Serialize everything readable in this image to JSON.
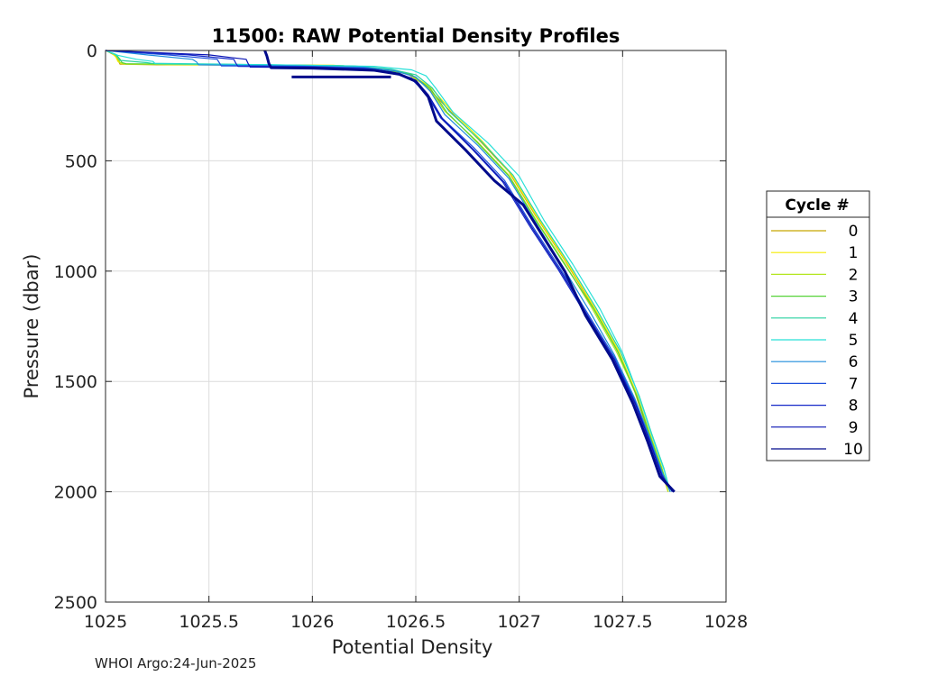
{
  "chart_data": {
    "type": "line",
    "title": "11500: RAW Potential Density Profiles",
    "xlabel": "Potential Density",
    "ylabel": "Pressure (dbar)",
    "xlim": [
      1025,
      1028
    ],
    "ylim": [
      0,
      2500
    ],
    "y_reversed": true,
    "grid": true,
    "xticks": [
      "1025",
      "1025.5",
      "1026",
      "1026.5",
      "1027",
      "1027.5",
      "1028"
    ],
    "yticks": [
      "0",
      "500",
      "1000",
      "1500",
      "2000",
      "2500"
    ],
    "legend": {
      "title": "Cycle #",
      "placement": "outside-right"
    },
    "series": [
      {
        "name": "0",
        "color": "#c8a800",
        "points": [
          [
            1025.0,
            0
          ],
          [
            1025.02,
            10
          ],
          [
            1025.05,
            25
          ],
          [
            1025.06,
            45
          ],
          [
            1025.07,
            62
          ],
          [
            1025.25,
            65
          ],
          [
            1026.1,
            68
          ],
          [
            1026.3,
            80
          ],
          [
            1026.45,
            100
          ],
          [
            1026.55,
            160
          ],
          [
            1026.65,
            260
          ],
          [
            1026.8,
            400
          ],
          [
            1026.95,
            550
          ],
          [
            1027.08,
            750
          ],
          [
            1027.22,
            950
          ],
          [
            1027.35,
            1150
          ],
          [
            1027.47,
            1350
          ],
          [
            1027.56,
            1550
          ],
          [
            1027.62,
            1720
          ],
          [
            1027.68,
            1880
          ],
          [
            1027.72,
            2000
          ]
        ]
      },
      {
        "name": "1",
        "color": "#f5ec00",
        "points": [
          [
            1025.0,
            0
          ],
          [
            1025.03,
            12
          ],
          [
            1025.05,
            30
          ],
          [
            1025.06,
            50
          ],
          [
            1025.08,
            60
          ],
          [
            1025.3,
            64
          ],
          [
            1026.1,
            67
          ],
          [
            1026.32,
            82
          ],
          [
            1026.47,
            105
          ],
          [
            1026.57,
            165
          ],
          [
            1026.67,
            270
          ],
          [
            1026.82,
            410
          ],
          [
            1026.96,
            560
          ],
          [
            1027.09,
            760
          ],
          [
            1027.23,
            960
          ],
          [
            1027.36,
            1160
          ],
          [
            1027.48,
            1360
          ],
          [
            1027.57,
            1560
          ],
          [
            1027.63,
            1730
          ],
          [
            1027.69,
            1890
          ],
          [
            1027.72,
            2000
          ]
        ]
      },
      {
        "name": "2",
        "color": "#b4e620",
        "points": [
          [
            1025.0,
            0
          ],
          [
            1025.04,
            15
          ],
          [
            1025.06,
            35
          ],
          [
            1025.07,
            55
          ],
          [
            1025.1,
            62
          ],
          [
            1025.4,
            64
          ],
          [
            1026.12,
            68
          ],
          [
            1026.33,
            83
          ],
          [
            1026.47,
            108
          ],
          [
            1026.56,
            170
          ],
          [
            1026.64,
            275
          ],
          [
            1026.8,
            415
          ],
          [
            1026.95,
            565
          ],
          [
            1027.08,
            765
          ],
          [
            1027.22,
            965
          ],
          [
            1027.35,
            1165
          ],
          [
            1027.47,
            1365
          ],
          [
            1027.57,
            1565
          ],
          [
            1027.63,
            1735
          ],
          [
            1027.69,
            1895
          ],
          [
            1027.72,
            2000
          ]
        ]
      },
      {
        "name": "3",
        "color": "#55d238",
        "points": [
          [
            1025.0,
            0
          ],
          [
            1025.05,
            18
          ],
          [
            1025.07,
            40
          ],
          [
            1025.08,
            55
          ],
          [
            1025.1,
            60
          ],
          [
            1025.5,
            63
          ],
          [
            1026.15,
            69
          ],
          [
            1026.34,
            84
          ],
          [
            1026.48,
            110
          ],
          [
            1026.57,
            172
          ],
          [
            1026.65,
            280
          ],
          [
            1026.8,
            420
          ],
          [
            1026.95,
            570
          ],
          [
            1027.08,
            770
          ],
          [
            1027.22,
            970
          ],
          [
            1027.36,
            1170
          ],
          [
            1027.48,
            1370
          ],
          [
            1027.57,
            1570
          ],
          [
            1027.63,
            1740
          ],
          [
            1027.69,
            1900
          ],
          [
            1027.73,
            2000
          ]
        ]
      },
      {
        "name": "4",
        "color": "#28d2a0",
        "points": [
          [
            1025.0,
            0
          ],
          [
            1025.05,
            20
          ],
          [
            1025.07,
            45
          ],
          [
            1025.2,
            55
          ],
          [
            1025.22,
            58
          ],
          [
            1025.6,
            62
          ],
          [
            1026.2,
            70
          ],
          [
            1026.38,
            85
          ],
          [
            1026.5,
            110
          ],
          [
            1026.58,
            170
          ],
          [
            1026.66,
            275
          ],
          [
            1026.82,
            415
          ],
          [
            1026.97,
            565
          ],
          [
            1027.1,
            765
          ],
          [
            1027.24,
            965
          ],
          [
            1027.37,
            1165
          ],
          [
            1027.49,
            1365
          ],
          [
            1027.58,
            1565
          ],
          [
            1027.64,
            1735
          ],
          [
            1027.7,
            1895
          ],
          [
            1027.73,
            2000
          ]
        ]
      },
      {
        "name": "5",
        "color": "#28e0d8",
        "points": [
          [
            1025.0,
            0
          ],
          [
            1025.06,
            22
          ],
          [
            1025.15,
            40
          ],
          [
            1025.23,
            50
          ],
          [
            1025.24,
            60
          ],
          [
            1025.8,
            65
          ],
          [
            1026.3,
            72
          ],
          [
            1026.48,
            88
          ],
          [
            1026.55,
            115
          ],
          [
            1026.6,
            175
          ],
          [
            1026.68,
            280
          ],
          [
            1026.85,
            420
          ],
          [
            1027.0,
            570
          ],
          [
            1027.12,
            770
          ],
          [
            1027.26,
            970
          ],
          [
            1027.39,
            1170
          ],
          [
            1027.5,
            1370
          ],
          [
            1027.58,
            1570
          ],
          [
            1027.64,
            1740
          ],
          [
            1027.7,
            1900
          ],
          [
            1027.73,
            2000
          ]
        ]
      },
      {
        "name": "6",
        "color": "#1e8cdc",
        "points": [
          [
            1025.0,
            0
          ],
          [
            1025.2,
            20
          ],
          [
            1025.42,
            40
          ],
          [
            1025.44,
            52
          ],
          [
            1025.45,
            65
          ],
          [
            1025.9,
            70
          ],
          [
            1026.25,
            76
          ],
          [
            1026.4,
            92
          ],
          [
            1026.5,
            120
          ],
          [
            1026.57,
            185
          ],
          [
            1026.64,
            290
          ],
          [
            1026.8,
            430
          ],
          [
            1026.95,
            580
          ],
          [
            1027.08,
            780
          ],
          [
            1027.21,
            980
          ],
          [
            1027.34,
            1180
          ],
          [
            1027.46,
            1380
          ],
          [
            1027.56,
            1580
          ],
          [
            1027.63,
            1750
          ],
          [
            1027.69,
            1910
          ],
          [
            1027.73,
            2000
          ]
        ]
      },
      {
        "name": "7",
        "color": "#1e50dc",
        "points": [
          [
            1025.0,
            0
          ],
          [
            1025.3,
            20
          ],
          [
            1025.54,
            40
          ],
          [
            1025.55,
            55
          ],
          [
            1025.56,
            70
          ],
          [
            1025.95,
            72
          ],
          [
            1026.25,
            80
          ],
          [
            1026.38,
            96
          ],
          [
            1026.48,
            125
          ],
          [
            1026.55,
            190
          ],
          [
            1026.62,
            300
          ],
          [
            1026.78,
            440
          ],
          [
            1026.93,
            590
          ],
          [
            1027.06,
            790
          ],
          [
            1027.2,
            990
          ],
          [
            1027.33,
            1190
          ],
          [
            1027.46,
            1390
          ],
          [
            1027.56,
            1590
          ],
          [
            1027.63,
            1760
          ],
          [
            1027.69,
            1920
          ],
          [
            1027.74,
            2000
          ]
        ]
      },
      {
        "name": "8",
        "color": "#1428c8",
        "points": [
          [
            1025.0,
            0
          ],
          [
            1025.4,
            20
          ],
          [
            1025.62,
            40
          ],
          [
            1025.63,
            58
          ],
          [
            1025.64,
            72
          ],
          [
            1026.0,
            75
          ],
          [
            1026.28,
            84
          ],
          [
            1026.4,
            100
          ],
          [
            1026.48,
            130
          ],
          [
            1026.55,
            195
          ],
          [
            1026.62,
            305
          ],
          [
            1026.77,
            445
          ],
          [
            1026.92,
            595
          ],
          [
            1027.05,
            795
          ],
          [
            1027.19,
            995
          ],
          [
            1027.32,
            1195
          ],
          [
            1027.45,
            1395
          ],
          [
            1027.56,
            1595
          ],
          [
            1027.63,
            1765
          ],
          [
            1027.69,
            1925
          ],
          [
            1027.74,
            2000
          ]
        ]
      },
      {
        "name": "9",
        "color": "#0a14b4",
        "points": [
          [
            1025.0,
            0
          ],
          [
            1025.5,
            20
          ],
          [
            1025.68,
            40
          ],
          [
            1025.69,
            60
          ],
          [
            1025.7,
            75
          ],
          [
            1026.05,
            78
          ],
          [
            1026.3,
            88
          ],
          [
            1026.42,
            104
          ],
          [
            1026.5,
            135
          ],
          [
            1026.56,
            200
          ],
          [
            1026.63,
            310
          ],
          [
            1026.78,
            450
          ],
          [
            1026.93,
            600
          ],
          [
            1027.06,
            800
          ],
          [
            1027.2,
            1000
          ],
          [
            1027.33,
            1200
          ],
          [
            1027.46,
            1400
          ],
          [
            1027.56,
            1600
          ],
          [
            1027.63,
            1770
          ],
          [
            1027.69,
            1930
          ],
          [
            1027.75,
            2000
          ]
        ]
      },
      {
        "name": "10",
        "color": "#000a8c",
        "points": [
          [
            1025.77,
            0
          ],
          [
            1025.78,
            25
          ],
          [
            1025.79,
            60
          ],
          [
            1025.8,
            78
          ],
          [
            1026.0,
            80
          ],
          [
            1026.3,
            90
          ],
          [
            1026.42,
            108
          ],
          [
            1026.5,
            140
          ],
          [
            1026.56,
            210
          ],
          [
            1026.6,
            320
          ],
          [
            1026.74,
            450
          ],
          [
            1026.88,
            590
          ],
          [
            1027.02,
            700
          ],
          [
            1027.12,
            850
          ],
          [
            1027.22,
            1000
          ],
          [
            1027.32,
            1200
          ],
          [
            1027.45,
            1400
          ],
          [
            1027.55,
            1600
          ],
          [
            1027.62,
            1770
          ],
          [
            1027.68,
            1930
          ],
          [
            1027.75,
            2000
          ]
        ]
      },
      {
        "name": "",
        "color": "#000a8c",
        "points": [
          [
            1025.9,
            120
          ],
          [
            1026.38,
            120
          ]
        ]
      }
    ]
  },
  "footer": "WHOI Argo:24-Jun-2025"
}
